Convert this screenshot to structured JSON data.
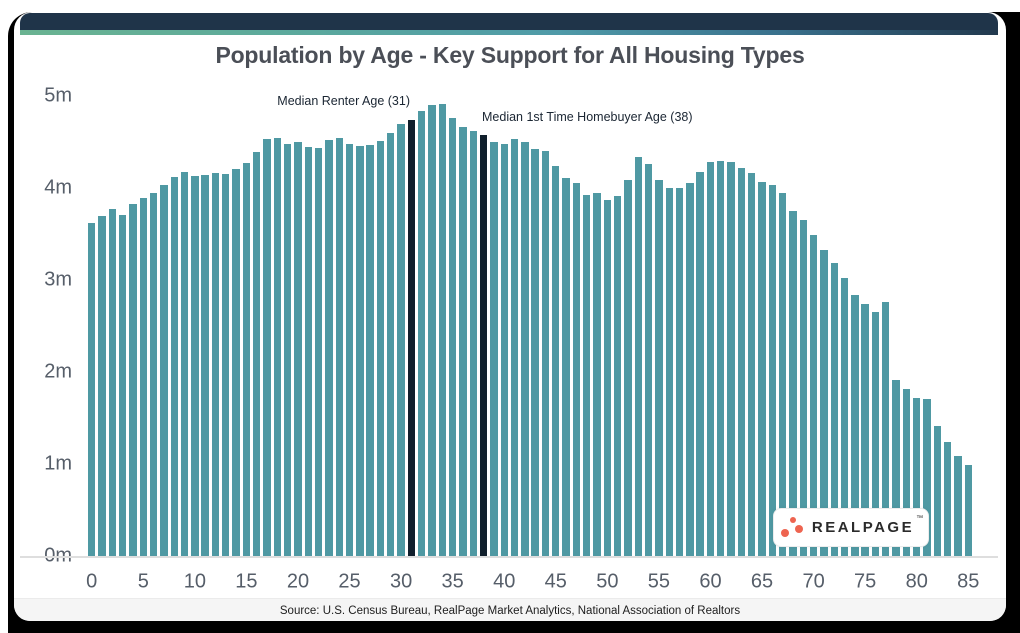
{
  "title": "Population by Age - Key Support for All Housing Types",
  "annotations": {
    "renter": "Median Renter Age (31)",
    "homebuyer": "Median 1st Time Homebuyer Age (38)"
  },
  "source": "Source: U.S. Census Bureau, RealPage Market Analytics, National Association of Realtors",
  "logo": {
    "text": "REALPAGE",
    "tm": "™"
  },
  "colors": {
    "bar_teal": "#4f99a3",
    "highlight_bar_dark": "#101f2c",
    "header_navy": "#1f3449",
    "stripe_gradient_left": "#6ab391",
    "stripe_gradient_mid": "#4f9aa8",
    "stripe_gradient_right": "#22394e",
    "axis_text": "#565e69",
    "title_text": "#4b4f57",
    "annotation_text": "#1b2633",
    "logo_dot_orange": "#ee6450",
    "footer_bg": "#f5f5f5",
    "frame_black": "#000000"
  },
  "chart_data": {
    "type": "bar",
    "title": "Population by Age - Key Support for All Housing Types",
    "xlabel": "",
    "ylabel": "",
    "unit": "millions of people per single year of age",
    "ylim_millions": [
      0,
      5
    ],
    "grid": false,
    "y_ticks": [
      "0m",
      "1m",
      "2m",
      "3m",
      "4m",
      "5m"
    ],
    "x_ticks": [
      0,
      5,
      10,
      15,
      20,
      25,
      30,
      35,
      40,
      45,
      50,
      55,
      60,
      65,
      70,
      75,
      80,
      85
    ],
    "ages_range": [
      0,
      85
    ],
    "values_millions": [
      3.62,
      3.7,
      3.77,
      3.71,
      3.83,
      3.89,
      3.95,
      4.03,
      4.12,
      4.17,
      4.13,
      4.14,
      4.16,
      4.15,
      4.21,
      4.27,
      4.39,
      4.53,
      4.54,
      4.48,
      4.5,
      4.45,
      4.43,
      4.52,
      4.54,
      4.48,
      4.46,
      4.47,
      4.51,
      4.6,
      4.7,
      4.74,
      4.84,
      4.9,
      4.91,
      4.76,
      4.66,
      4.62,
      4.58,
      4.5,
      4.48,
      4.53,
      4.5,
      4.42,
      4.4,
      4.24,
      4.11,
      4.05,
      3.92,
      3.95,
      3.87,
      3.91,
      4.09,
      4.34,
      4.26,
      4.09,
      4.0,
      4.0,
      4.05,
      4.17,
      4.28,
      4.29,
      4.28,
      4.22,
      4.16,
      4.07,
      4.03,
      3.95,
      3.75,
      3.65,
      3.49,
      3.33,
      3.18,
      3.02,
      2.84,
      2.74,
      2.65,
      2.76,
      1.91,
      1.81,
      1.72,
      1.71,
      1.41,
      1.24,
      1.09,
      0.99
    ],
    "highlight_ages": [
      31,
      38
    ],
    "highlight_labels": [
      "Median Renter Age (31)",
      "Median 1st Time Homebuyer Age (38)"
    ],
    "legend": "none"
  }
}
